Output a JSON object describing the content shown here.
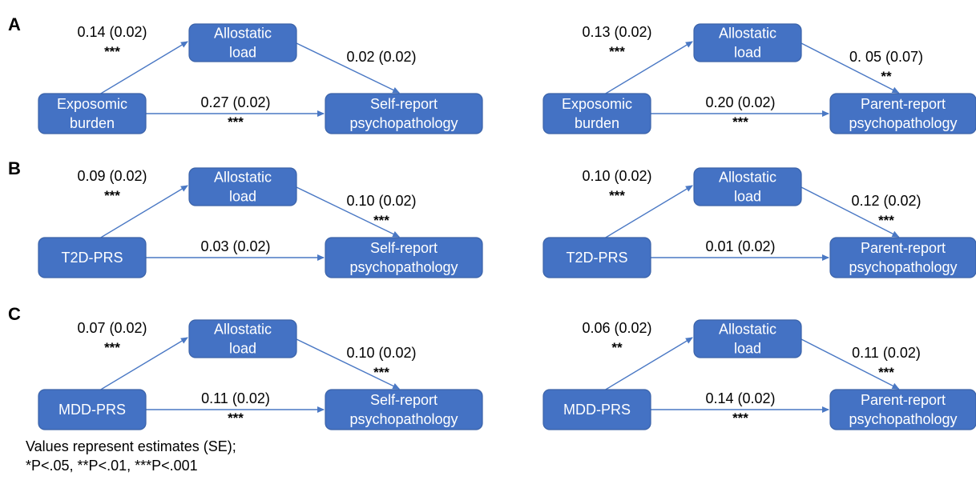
{
  "footnote": {
    "line1": "Values represent estimates (SE);",
    "line2": "*P<.05, **P<.01, ***P<.001"
  },
  "mediator_label": [
    "Allostatic",
    "load"
  ],
  "panels": [
    {
      "letter": "A",
      "diagrams": [
        {
          "predictor": [
            "Exposomic",
            "burden"
          ],
          "outcome": [
            "Self-report",
            "psychopathology"
          ],
          "a_path": {
            "estimate": "0.14 (0.02)",
            "sig": "***"
          },
          "b_path": {
            "estimate": "0.02 (0.02)",
            "sig": ""
          },
          "c_path": {
            "estimate": "0.27 (0.02)",
            "sig": "***"
          }
        },
        {
          "predictor": [
            "Exposomic",
            "burden"
          ],
          "outcome": [
            "Parent-report",
            "psychopathology"
          ],
          "a_path": {
            "estimate": "0.13 (0.02)",
            "sig": "***"
          },
          "b_path": {
            "estimate": "0. 05 (0.07)",
            "sig": "**"
          },
          "c_path": {
            "estimate": "0.20 (0.02)",
            "sig": "***"
          }
        }
      ]
    },
    {
      "letter": "B",
      "diagrams": [
        {
          "predictor": [
            "T2D-PRS"
          ],
          "outcome": [
            "Self-report",
            "psychopathology"
          ],
          "a_path": {
            "estimate": "0.09 (0.02)",
            "sig": "***"
          },
          "b_path": {
            "estimate": "0.10 (0.02)",
            "sig": "***"
          },
          "c_path": {
            "estimate": "0.03 (0.02)",
            "sig": ""
          }
        },
        {
          "predictor": [
            "T2D-PRS"
          ],
          "outcome": [
            "Parent-report",
            "psychopathology"
          ],
          "a_path": {
            "estimate": "0.10 (0.02)",
            "sig": "***"
          },
          "b_path": {
            "estimate": "0.12 (0.02)",
            "sig": "***"
          },
          "c_path": {
            "estimate": "0.01 (0.02)",
            "sig": ""
          }
        }
      ]
    },
    {
      "letter": "C",
      "diagrams": [
        {
          "predictor": [
            "MDD-PRS"
          ],
          "outcome": [
            "Self-report",
            "psychopathology"
          ],
          "a_path": {
            "estimate": "0.07 (0.02)",
            "sig": "***"
          },
          "b_path": {
            "estimate": "0.10 (0.02)",
            "sig": "***"
          },
          "c_path": {
            "estimate": "0.11 (0.02)",
            "sig": "***"
          }
        },
        {
          "predictor": [
            "MDD-PRS"
          ],
          "outcome": [
            "Parent-report",
            "psychopathology"
          ],
          "a_path": {
            "estimate": "0.06 (0.02)",
            "sig": "**"
          },
          "b_path": {
            "estimate": "0.11 (0.02)",
            "sig": "***"
          },
          "c_path": {
            "estimate": "0.14 (0.02)",
            "sig": "***"
          }
        }
      ]
    }
  ]
}
